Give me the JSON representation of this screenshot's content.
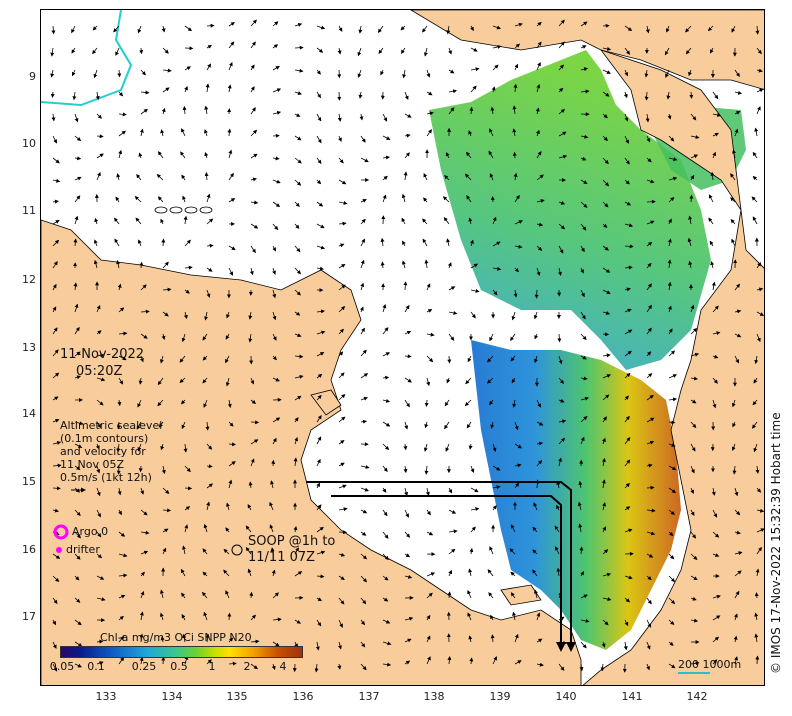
{
  "map": {
    "date_line1": "11-Nov-2022",
    "date_line2": "05:20Z",
    "altimetry_lines": [
      "Altimetric sealevel",
      "(0.1m contours)",
      "and velocity for",
      "11 Nov 05Z",
      "0.5m/s (1kt 12h)"
    ],
    "argo_label": "Argo 0",
    "drifter_label": "drifter",
    "soop_label_line1": "SOOP @1h to",
    "soop_label_line2": "11/11 07Z",
    "copyright": "© IMOS 17-Nov-2022 15:32:39 Hobart time",
    "colorbar_title": "Chl-a mg/m3 OCi SNPP N20",
    "colorbar_ticks": [
      "0.05",
      "0.1",
      "0.25",
      "0.5",
      "1",
      "2",
      "4"
    ],
    "scale_label": "200  1000m",
    "lat_ticks": [
      "9",
      "10",
      "11",
      "12",
      "13",
      "14",
      "15",
      "16",
      "17"
    ],
    "lon_ticks": [
      "133",
      "134",
      "135",
      "136",
      "137",
      "138",
      "139",
      "140",
      "141",
      "142"
    ],
    "colors": {
      "land": "#f9cc9c",
      "ocean": "#ffffff",
      "argo": "#ff00ff",
      "scale_bar": "#2ac0c8",
      "coast_contour": "#20d0d0"
    }
  }
}
